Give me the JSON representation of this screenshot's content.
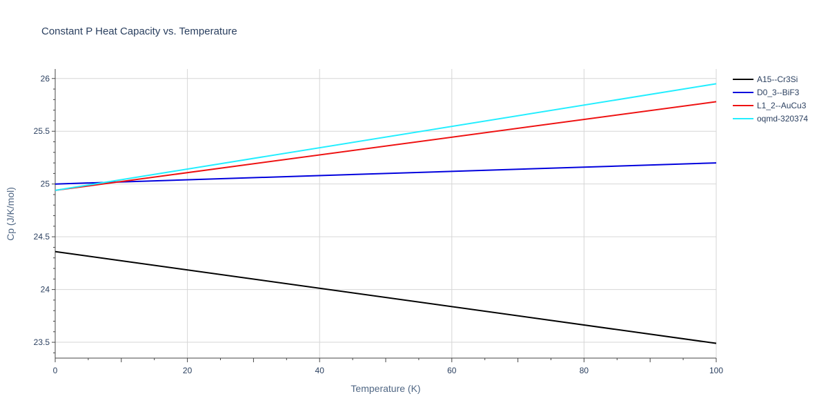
{
  "chart_data": {
    "type": "line",
    "title": "Constant P Heat Capacity vs. Temperature",
    "xlabel": "Temperature (K)",
    "ylabel": "Cp (J/K/mol)",
    "xlim": [
      0,
      100
    ],
    "ylim": [
      23.35,
      26.09
    ],
    "x_ticks": [
      0,
      20,
      40,
      60,
      80,
      100
    ],
    "y_ticks": [
      23.5,
      24,
      24.5,
      25,
      25.5,
      26
    ],
    "x_tick_labels": [
      "0",
      "20",
      "40",
      "60",
      "80",
      "100"
    ],
    "y_tick_labels": [
      "23.5",
      "24",
      "24.5",
      "25",
      "25.5",
      "26"
    ],
    "grid": true,
    "legend_position": "top-right",
    "x": [
      0,
      100
    ],
    "series": [
      {
        "name": "A15--Cr3Si",
        "color": "#000000",
        "values": [
          24.36,
          23.49
        ]
      },
      {
        "name": "D0_3--BiF3",
        "color": "#0000dd",
        "values": [
          25.0,
          25.2
        ]
      },
      {
        "name": "L1_2--AuCu3",
        "color": "#ee1111",
        "values": [
          24.94,
          25.78
        ]
      },
      {
        "name": "oqmd-320374",
        "color": "#22eeff",
        "values": [
          24.94,
          25.95
        ]
      }
    ]
  }
}
